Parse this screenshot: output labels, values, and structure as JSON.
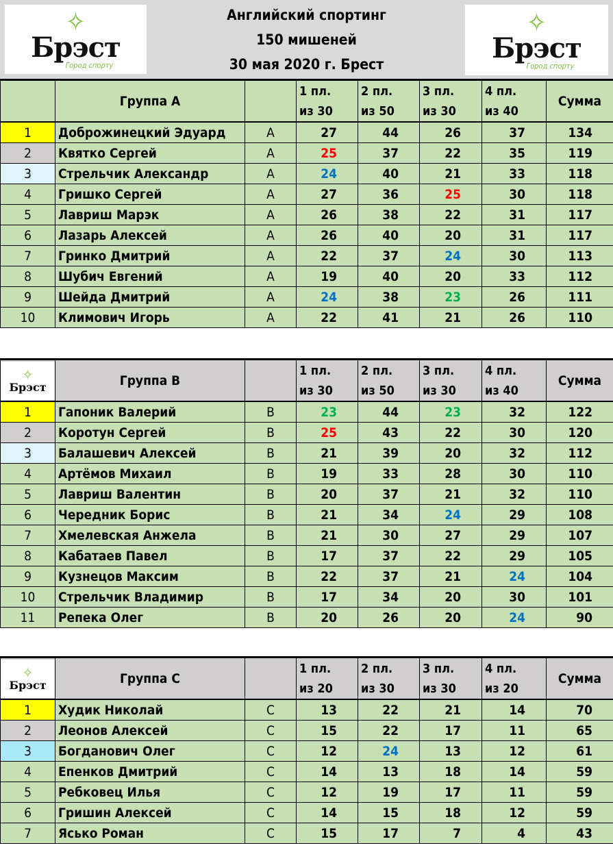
{
  "header": {
    "line1": "Английский спортинг",
    "line2": "150 мишеней",
    "line3": "30 мая 2020 г. Брест",
    "logo_text": "Брэст",
    "logo_tagline": "Город спорту"
  },
  "colors": {
    "red": "#ff0000",
    "blue": "#0070c0",
    "green": "#00b050",
    "gold": "#ffff00",
    "silver": "#d0cece",
    "bronze": "#ddf5fb",
    "bronze_c": "#a9e9f9"
  },
  "groups": [
    {
      "title": "Группа А",
      "header_style": "green",
      "columns": [
        "1 пл.\nиз 30",
        "2 пл.\nиз 50",
        "3 пл.\nиз 30",
        "4 пл.\nиз 40"
      ],
      "sum_label": "Сумма",
      "rows": [
        {
          "rank": "1",
          "name": "Доброжинецкий Эдуард",
          "group": "А",
          "scores": [
            27,
            44,
            26,
            37
          ],
          "sum": 134,
          "hl": [
            null,
            null,
            null,
            null
          ]
        },
        {
          "rank": "2",
          "name": "Квятко Сергей",
          "group": "А",
          "scores": [
            25,
            37,
            22,
            35
          ],
          "sum": 119,
          "hl": [
            "red",
            null,
            null,
            null
          ]
        },
        {
          "rank": "3",
          "name": "Стрельчик Александр",
          "group": "А",
          "scores": [
            24,
            40,
            21,
            33
          ],
          "sum": 118,
          "hl": [
            "blue",
            null,
            null,
            null
          ]
        },
        {
          "rank": "4",
          "name": "Гришко Сергей",
          "group": "А",
          "scores": [
            27,
            36,
            25,
            30
          ],
          "sum": 118,
          "hl": [
            null,
            null,
            "red",
            null
          ]
        },
        {
          "rank": "5",
          "name": "Лавриш Марэк",
          "group": "А",
          "scores": [
            26,
            38,
            22,
            31
          ],
          "sum": 117,
          "hl": [
            null,
            null,
            null,
            null
          ]
        },
        {
          "rank": "6",
          "name": "Лазарь Алексей",
          "group": "А",
          "scores": [
            26,
            40,
            20,
            31
          ],
          "sum": 117,
          "hl": [
            null,
            null,
            null,
            null
          ]
        },
        {
          "rank": "7",
          "name": "Гринко Дмитрий",
          "group": "А",
          "scores": [
            22,
            37,
            24,
            30
          ],
          "sum": 113,
          "hl": [
            null,
            null,
            "blue",
            null
          ]
        },
        {
          "rank": "8",
          "name": "Шубич Евгений",
          "group": "А",
          "scores": [
            19,
            40,
            20,
            33
          ],
          "sum": 112,
          "hl": [
            null,
            null,
            null,
            null
          ]
        },
        {
          "rank": "9",
          "name": "Шейда Дмитрий",
          "group": "А",
          "scores": [
            24,
            38,
            23,
            26
          ],
          "sum": 111,
          "hl": [
            "blue",
            null,
            "green",
            null
          ]
        },
        {
          "rank": "10",
          "name": "Климович Игорь",
          "group": "А",
          "scores": [
            22,
            41,
            21,
            26
          ],
          "sum": 110,
          "hl": [
            null,
            null,
            null,
            null
          ]
        }
      ]
    },
    {
      "title": "Группа В",
      "header_style": "gray",
      "columns": [
        "1 пл.\nиз 30",
        "2 пл.\nиз 50",
        "3 пл.\nиз 30",
        "4 пл.\nиз 40"
      ],
      "sum_label": "Сумма",
      "rows": [
        {
          "rank": "1",
          "name": "Гапоник Валерий",
          "group": "В",
          "scores": [
            23,
            44,
            23,
            32
          ],
          "sum": 122,
          "hl": [
            "green",
            null,
            "green",
            null
          ]
        },
        {
          "rank": "2",
          "name": "Коротун Сергей",
          "group": "В",
          "scores": [
            25,
            43,
            22,
            30
          ],
          "sum": 120,
          "hl": [
            "red",
            null,
            null,
            null
          ]
        },
        {
          "rank": "3",
          "name": "Балашевич Алексей",
          "group": "В",
          "scores": [
            21,
            39,
            20,
            32
          ],
          "sum": 112,
          "hl": [
            null,
            null,
            null,
            null
          ]
        },
        {
          "rank": "4",
          "name": "Артёмов Михаил",
          "group": "В",
          "scores": [
            19,
            33,
            28,
            30
          ],
          "sum": 110,
          "hl": [
            null,
            null,
            null,
            null
          ]
        },
        {
          "rank": "5",
          "name": "Лавриш Валентин",
          "group": "В",
          "scores": [
            20,
            37,
            21,
            32
          ],
          "sum": 110,
          "hl": [
            null,
            null,
            null,
            null
          ]
        },
        {
          "rank": "6",
          "name": "Чередник Борис",
          "group": "В",
          "scores": [
            21,
            34,
            24,
            29
          ],
          "sum": 108,
          "hl": [
            null,
            null,
            "blue",
            null
          ]
        },
        {
          "rank": "7",
          "name": "Хмелевская Анжела",
          "group": "В",
          "scores": [
            21,
            30,
            27,
            29
          ],
          "sum": 107,
          "hl": [
            null,
            null,
            null,
            null
          ]
        },
        {
          "rank": "8",
          "name": "Кабатаев Павел",
          "group": "В",
          "scores": [
            17,
            37,
            22,
            29
          ],
          "sum": 105,
          "hl": [
            null,
            null,
            null,
            null
          ]
        },
        {
          "rank": "9",
          "name": "Кузнецов Максим",
          "group": "В",
          "scores": [
            22,
            37,
            21,
            24
          ],
          "sum": 104,
          "hl": [
            null,
            null,
            null,
            "blue"
          ]
        },
        {
          "rank": "10",
          "name": "Стрельчик Владимир",
          "group": "В",
          "scores": [
            17,
            34,
            20,
            30
          ],
          "sum": 101,
          "hl": [
            null,
            null,
            null,
            null
          ]
        },
        {
          "rank": "11",
          "name": "Репека Олег",
          "group": "В",
          "scores": [
            20,
            26,
            20,
            24
          ],
          "sum": 90,
          "hl": [
            null,
            null,
            null,
            "blue"
          ]
        }
      ]
    },
    {
      "title": "Группа С",
      "header_style": "gray",
      "columns": [
        "1 пл.\nиз 20",
        "2 пл.\nиз 30",
        "3 пл.\nиз 30",
        "4 пл.\nиз 20"
      ],
      "sum_label": "Сумма",
      "rows": [
        {
          "rank": "1",
          "name": "Худик Николай",
          "group": "С",
          "scores": [
            13,
            22,
            21,
            14
          ],
          "sum": 70,
          "hl": [
            null,
            null,
            null,
            null
          ]
        },
        {
          "rank": "2",
          "name": "Леонов Алексей",
          "group": "С",
          "scores": [
            15,
            22,
            17,
            11
          ],
          "sum": 65,
          "hl": [
            null,
            null,
            null,
            null
          ]
        },
        {
          "rank": "3",
          "name": "Богданович Олег",
          "group": "С",
          "scores": [
            12,
            24,
            13,
            12
          ],
          "sum": 61,
          "hl": [
            null,
            "blue",
            null,
            null
          ]
        },
        {
          "rank": "4",
          "name": "Епенков Дмитрий",
          "group": "С",
          "scores": [
            14,
            13,
            18,
            14
          ],
          "sum": 59,
          "hl": [
            null,
            null,
            null,
            null
          ]
        },
        {
          "rank": "5",
          "name": "Ребковец Илья",
          "group": "С",
          "scores": [
            12,
            19,
            17,
            11
          ],
          "sum": 59,
          "hl": [
            null,
            null,
            null,
            null
          ]
        },
        {
          "rank": "6",
          "name": "Гришин Алексей",
          "group": "С",
          "scores": [
            14,
            15,
            18,
            12
          ],
          "sum": 59,
          "hl": [
            null,
            null,
            null,
            null
          ]
        },
        {
          "rank": "7",
          "name": "Ясько Роман",
          "group": "С",
          "scores": [
            15,
            17,
            7,
            4
          ],
          "sum": 43,
          "hl": [
            null,
            null,
            null,
            null
          ]
        }
      ]
    }
  ]
}
